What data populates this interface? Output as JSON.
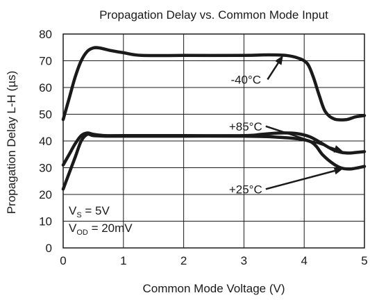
{
  "chart_data": {
    "type": "line",
    "title": "Propagation Delay vs. Common Mode Input",
    "xlabel": "Common Mode Voltage (V)",
    "ylabel": "Propagation Delay L-H (µs)",
    "xlim": [
      0,
      5
    ],
    "ylim": [
      0,
      80
    ],
    "xticks": [
      0,
      1,
      2,
      3,
      4,
      5
    ],
    "yticks": [
      0,
      10,
      20,
      30,
      40,
      50,
      60,
      70,
      80
    ],
    "grid": true,
    "series": [
      {
        "name": "-40°C",
        "color": "#1a1a1a",
        "points": [
          [
            0,
            48
          ],
          [
            0.1,
            56
          ],
          [
            0.2,
            64
          ],
          [
            0.3,
            70
          ],
          [
            0.4,
            73.5
          ],
          [
            0.5,
            74.8
          ],
          [
            0.6,
            74.8
          ],
          [
            0.8,
            73.8
          ],
          [
            1.0,
            73
          ],
          [
            1.3,
            72
          ],
          [
            2.0,
            72
          ],
          [
            3.0,
            72
          ],
          [
            3.4,
            72.2
          ],
          [
            3.7,
            72
          ],
          [
            3.9,
            71
          ],
          [
            4.05,
            69
          ],
          [
            4.15,
            64
          ],
          [
            4.25,
            57
          ],
          [
            4.35,
            51
          ],
          [
            4.5,
            48.2
          ],
          [
            4.7,
            48
          ],
          [
            4.85,
            49
          ],
          [
            5.0,
            49.5
          ]
        ]
      },
      {
        "name": "+85°C",
        "color": "#1a1a1a",
        "points": [
          [
            0,
            31
          ],
          [
            0.1,
            35
          ],
          [
            0.2,
            39
          ],
          [
            0.3,
            42
          ],
          [
            0.4,
            43
          ],
          [
            0.5,
            42.5
          ],
          [
            0.7,
            42
          ],
          [
            1.0,
            42
          ],
          [
            2.0,
            42
          ],
          [
            3.0,
            42
          ],
          [
            3.3,
            42.5
          ],
          [
            3.6,
            43
          ],
          [
            3.9,
            42.7
          ],
          [
            4.1,
            41.5
          ],
          [
            4.3,
            39
          ],
          [
            4.5,
            36.5
          ],
          [
            4.7,
            35.5
          ],
          [
            4.9,
            35.8
          ],
          [
            5.0,
            36
          ]
        ]
      },
      {
        "name": "+25°C",
        "color": "#1a1a1a",
        "points": [
          [
            0,
            22
          ],
          [
            0.1,
            28
          ],
          [
            0.2,
            34
          ],
          [
            0.3,
            40
          ],
          [
            0.4,
            42.5
          ],
          [
            0.5,
            42
          ],
          [
            0.7,
            41.8
          ],
          [
            1.0,
            41.8
          ],
          [
            2.0,
            41.8
          ],
          [
            3.0,
            41.8
          ],
          [
            3.5,
            41.5
          ],
          [
            3.9,
            40.8
          ],
          [
            4.1,
            39.8
          ],
          [
            4.2,
            38
          ],
          [
            4.3,
            35
          ],
          [
            4.45,
            32
          ],
          [
            4.6,
            30
          ],
          [
            4.75,
            29.5
          ],
          [
            4.9,
            30
          ],
          [
            5.0,
            30.5
          ]
        ]
      }
    ],
    "annotations": [
      {
        "text": "-40°C",
        "at": [
          3.3,
          63
        ],
        "arrow_to": [
          3.65,
          72
        ]
      },
      {
        "text": "+85°C",
        "at": [
          3.27,
          45.5
        ],
        "arrow_to": [
          4.65,
          36
        ]
      },
      {
        "text": "+25°C",
        "at": [
          3.27,
          22
        ],
        "arrow_to": [
          4.65,
          29.7
        ]
      }
    ],
    "conditions": [
      {
        "main": "V",
        "sub": "S",
        "rest": " = 5V"
      },
      {
        "main": "V",
        "sub": "OD",
        "rest": " = 20mV"
      }
    ]
  }
}
